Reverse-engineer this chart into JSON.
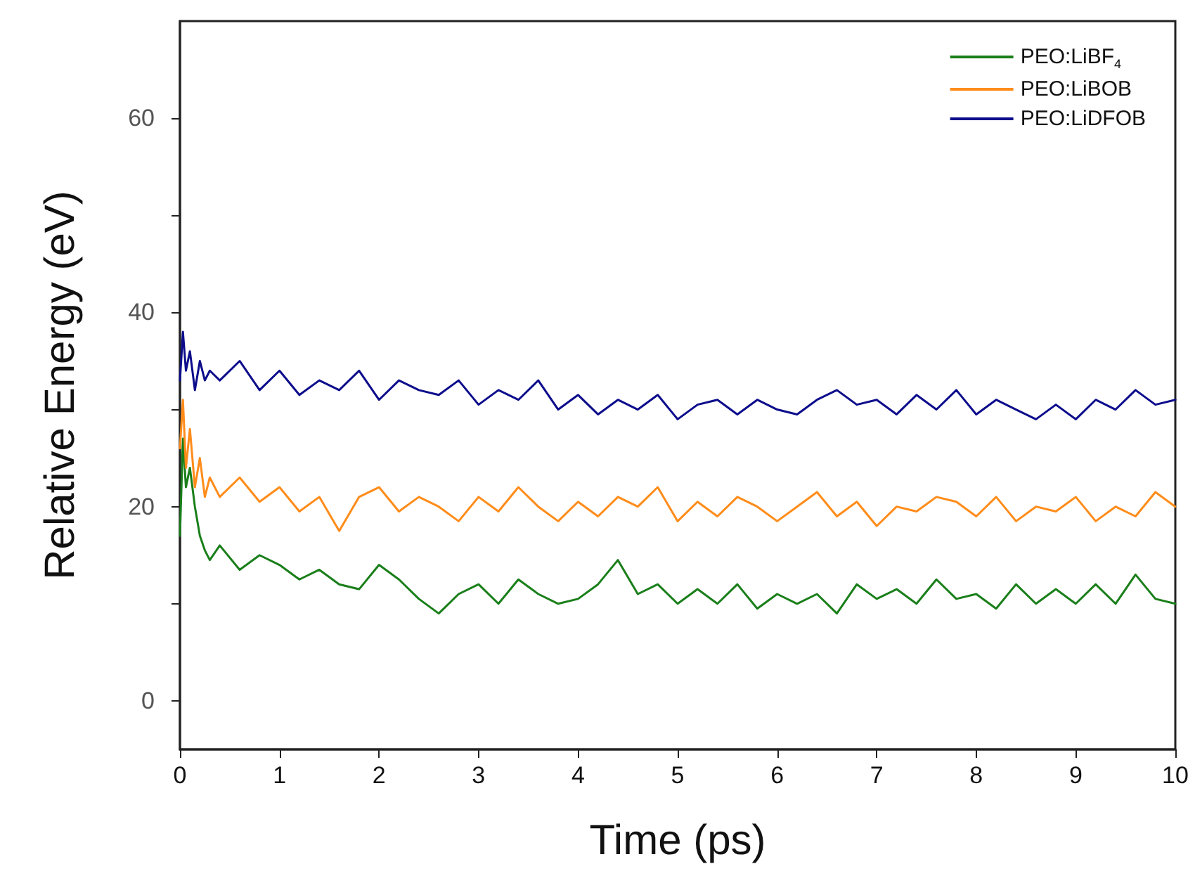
{
  "chart_data": {
    "type": "line",
    "xlabel": "Time (ps)",
    "ylabel": "Relative Energy (eV)",
    "xlim": [
      0,
      10
    ],
    "xticks": [
      0,
      1,
      2,
      3,
      4,
      5,
      6,
      7,
      8,
      9,
      10
    ],
    "ylim": [
      -5,
      70
    ],
    "yticks": [
      0,
      {
        "value": 10,
        "label": null
      },
      20,
      {
        "value": 30,
        "label": null
      },
      40,
      {
        "value": 50,
        "label": null
      },
      60
    ],
    "grid": false,
    "legend": "top right",
    "marker": "none",
    "line_style": "solid",
    "x": [
      0,
      0.03,
      0.06,
      0.1,
      0.15,
      0.2,
      0.25,
      0.3,
      0.4,
      0.6,
      0.8,
      1.0,
      1.2,
      1.4,
      1.6,
      1.8,
      2.0,
      2.2,
      2.4,
      2.6,
      2.8,
      3.0,
      3.2,
      3.4,
      3.6,
      3.8,
      4.0,
      4.2,
      4.4,
      4.6,
      4.8,
      5.0,
      5.2,
      5.4,
      5.6,
      5.8,
      6.0,
      6.2,
      6.4,
      6.6,
      6.8,
      7.0,
      7.2,
      7.4,
      7.6,
      7.8,
      8.0,
      8.2,
      8.4,
      8.6,
      8.8,
      9.0,
      9.2,
      9.4,
      9.6,
      9.8,
      10.0
    ],
    "series": [
      {
        "name": "PEO:LiBF$_{4}$",
        "color": "#1a7f1a",
        "values": [
          17,
          27,
          22,
          24,
          20,
          17,
          15.5,
          14.5,
          16,
          13.5,
          15,
          14,
          12.5,
          13.5,
          12,
          11.5,
          14,
          12.5,
          10.5,
          9,
          11,
          12,
          10,
          12.5,
          11,
          10,
          10.5,
          12,
          14.5,
          11,
          12,
          10,
          11.5,
          10,
          12,
          9.5,
          11,
          10,
          11,
          9,
          12,
          10.5,
          11.5,
          10,
          12.5,
          10.5,
          11,
          9.5,
          12,
          10,
          11.5,
          10,
          12,
          10,
          13,
          10.5,
          10
        ]
      },
      {
        "name": "PEO:LiBOB",
        "color": "#ff8c1a",
        "values": [
          26,
          31,
          24,
          28,
          22,
          25,
          21,
          23,
          21,
          23,
          20.5,
          22,
          19.5,
          21,
          17.5,
          21,
          22,
          19.5,
          21,
          20,
          18.5,
          21,
          19.5,
          22,
          20,
          18.5,
          20.5,
          19,
          21,
          20,
          22,
          18.5,
          20.5,
          19,
          21,
          20,
          18.5,
          20,
          21.5,
          19,
          20.5,
          18,
          20,
          19.5,
          21,
          20.5,
          19,
          21,
          18.5,
          20,
          19.5,
          21,
          18.5,
          20,
          19,
          21.5,
          20
        ]
      },
      {
        "name": "PEO:LiDFOB",
        "color": "#0d0d8c",
        "values": [
          33,
          38,
          34,
          36,
          32,
          35,
          33,
          34,
          33,
          35,
          32,
          34,
          31.5,
          33,
          32,
          34,
          31,
          33,
          32,
          31.5,
          33,
          30.5,
          32,
          31,
          33,
          30,
          31.5,
          29.5,
          31,
          30,
          31.5,
          29,
          30.5,
          31,
          29.5,
          31,
          30,
          29.5,
          31,
          32,
          30.5,
          31,
          29.5,
          31.5,
          30,
          32,
          29.5,
          31,
          30,
          29,
          30.5,
          29,
          31,
          30,
          32,
          30.5,
          31
        ]
      }
    ]
  }
}
